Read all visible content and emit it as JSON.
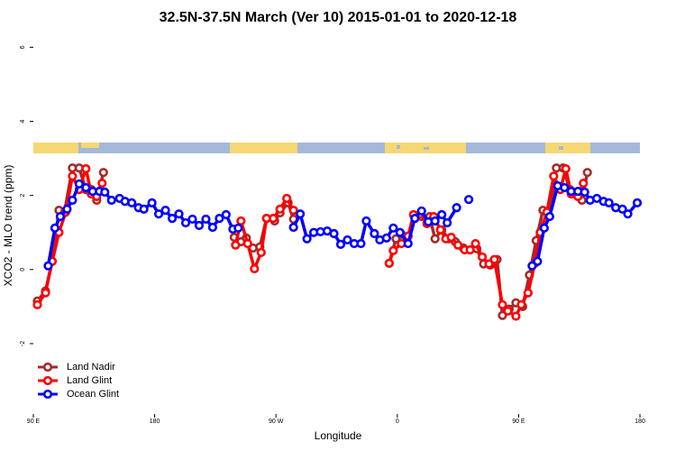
{
  "chart_data": {
    "type": "line",
    "title": "32.5N-37.5N March (Ver 10)   2015-01-01 to 2020-12-18",
    "x_label": "Longitude",
    "y_label": "XCO2 - MLO trend (ppm)",
    "xlim": [
      90,
      540
    ],
    "ylim": [
      -3.9,
      6.35
    ],
    "xticks": [
      {
        "value": 90,
        "label": "90 E"
      },
      {
        "value": 180,
        "label": "180"
      },
      {
        "value": 270,
        "label": "90 W"
      },
      {
        "value": 360,
        "label": "0"
      },
      {
        "value": 450,
        "label": "90 E"
      },
      {
        "value": 540,
        "label": "180"
      }
    ],
    "yticks": [
      -2,
      0,
      2,
      4,
      6
    ],
    "legend": "bottom-left",
    "series": [
      {
        "name": "Land Nadir",
        "color": "#a52a2a",
        "x": [
          93,
          99,
          104,
          109,
          113,
          119,
          124,
          129,
          133,
          137,
          142,
          190,
          239,
          244,
          248,
          253,
          258,
          263,
          269,
          273,
          279,
          283,
          320,
          354,
          359,
          363,
          368,
          373,
          378,
          384,
          388,
          393,
          398,
          403,
          409,
          414,
          419,
          424,
          429,
          434,
          438,
          443,
          448,
          453,
          458,
          463,
          468,
          473,
          478,
          483,
          488,
          493,
          497,
          501
        ],
        "values": [
          -0.85,
          -0.58,
          0.22,
          1.6,
          1.53,
          2.74,
          2.74,
          2.16,
          2.16,
          1.87,
          2.62,
          null,
          0.87,
          0.75,
          0.85,
          0.58,
          0.61,
          1.38,
          1.31,
          1.53,
          1.8,
          1.36,
          null,
          0.17,
          0.83,
          0.95,
          0.9,
          1.43,
          1.43,
          1.43,
          0.83,
          1.07,
          0.83,
          0.75,
          0.58,
          0.53,
          0.56,
          0.15,
          0.12,
          0.27,
          -1.24,
          -1.07,
          -0.9,
          -1.0,
          -0.15,
          0.78,
          1.6,
          1.43,
          2.74,
          2.74,
          2.16,
          2.09,
          1.87,
          2.62
        ]
      },
      {
        "name": "Land Glint",
        "color": "#ff0000",
        "x": [
          93,
          99,
          104,
          109,
          114,
          119,
          124,
          129,
          133,
          137,
          141,
          190,
          240,
          244,
          249,
          254,
          259,
          263,
          268,
          273,
          278,
          283,
          320,
          354,
          357,
          363,
          368,
          372,
          377,
          382,
          387,
          392,
          396,
          400,
          405,
          410,
          414,
          418,
          423,
          428,
          432,
          438,
          442,
          448,
          452,
          457,
          462,
          466,
          471,
          476,
          481,
          485,
          489,
          494,
          498
        ],
        "values": [
          -0.95,
          -0.63,
          0.22,
          1.0,
          1.55,
          2.52,
          2.16,
          2.72,
          2.04,
          1.97,
          2.33,
          null,
          0.66,
          1.31,
          0.7,
          0.02,
          0.46,
          1.38,
          1.38,
          1.63,
          1.92,
          1.6,
          null,
          0.17,
          0.51,
          0.7,
          0.9,
          1.48,
          1.5,
          1.24,
          1.43,
          1.07,
          0.83,
          0.87,
          0.66,
          0.53,
          0.53,
          0.7,
          0.34,
          0.15,
          0.27,
          -0.95,
          -1.12,
          -1.26,
          -0.95,
          -0.63,
          0.17,
          1.0,
          1.55,
          2.52,
          2.16,
          2.72,
          2.04,
          1.97,
          2.33
        ]
      },
      {
        "name": "Ocean Glint",
        "color": "#0000ff",
        "x": [
          101,
          106,
          110,
          115,
          119,
          124,
          129,
          134,
          139,
          143,
          148,
          154,
          158,
          163,
          168,
          172,
          178,
          183,
          188,
          193,
          198,
          203,
          208,
          213,
          218,
          223,
          228,
          233,
          238,
          242,
          260,
          283,
          288,
          293,
          298,
          303,
          308,
          313,
          318,
          323,
          328,
          333,
          337,
          343,
          347,
          352,
          357,
          362,
          368,
          373,
          378,
          383,
          388,
          393,
          397,
          404,
          408,
          413,
          430,
          460,
          464,
          469,
          473,
          479,
          484,
          489,
          494,
          499,
          503,
          508,
          513,
          517,
          522,
          527,
          531,
          538
        ],
        "values": [
          0.1,
          1.12,
          1.43,
          1.63,
          1.87,
          2.31,
          2.21,
          2.11,
          2.11,
          2.09,
          1.87,
          1.92,
          1.84,
          1.8,
          1.67,
          1.63,
          1.8,
          1.5,
          1.6,
          1.38,
          1.5,
          1.26,
          1.36,
          1.19,
          1.36,
          1.14,
          1.38,
          1.48,
          1.09,
          1.12,
          null,
          1.14,
          1.5,
          0.83,
          1.0,
          1.02,
          1.04,
          0.97,
          0.68,
          0.8,
          0.7,
          0.7,
          1.31,
          0.97,
          0.8,
          0.85,
          1.12,
          1.0,
          0.7,
          1.38,
          1.58,
          1.29,
          1.31,
          1.48,
          1.26,
          1.67,
          null,
          1.89,
          null,
          0.1,
          0.22,
          1.12,
          1.43,
          2.26,
          2.21,
          2.11,
          2.11,
          2.09,
          1.87,
          1.92,
          1.84,
          1.8,
          1.67,
          1.63,
          1.5,
          1.8
        ]
      }
    ]
  }
}
